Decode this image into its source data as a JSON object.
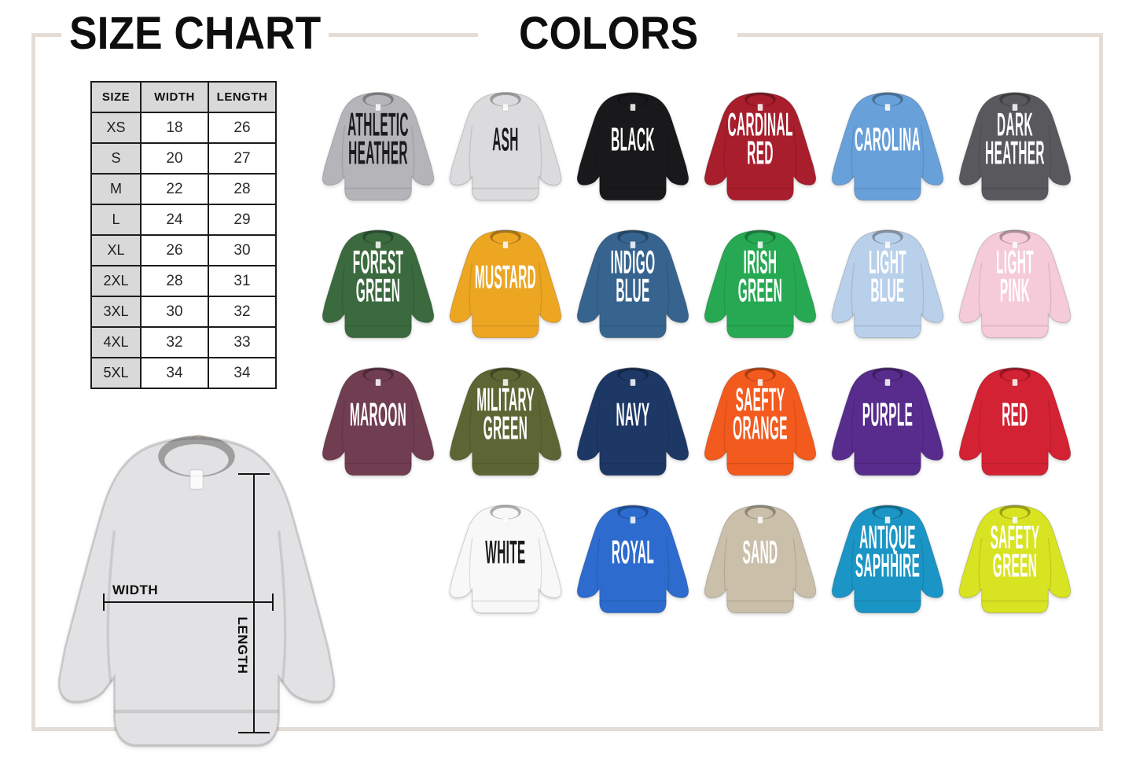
{
  "titles": {
    "size_chart": "SIZE CHART",
    "colors": "COLORS"
  },
  "frame": {
    "color": "#e4ddd7"
  },
  "size_table": {
    "headers": [
      "SIZE",
      "WIDTH",
      "LENGTH"
    ],
    "rows": [
      [
        "XS",
        "18",
        "26"
      ],
      [
        "S",
        "20",
        "27"
      ],
      [
        "M",
        "22",
        "28"
      ],
      [
        "L",
        "24",
        "29"
      ],
      [
        "XL",
        "26",
        "30"
      ],
      [
        "2XL",
        "28",
        "31"
      ],
      [
        "3XL",
        "30",
        "32"
      ],
      [
        "4XL",
        "32",
        "33"
      ],
      [
        "5XL",
        "34",
        "34"
      ]
    ]
  },
  "measurement_diagram": {
    "width_label": "WIDTH",
    "length_label": "LENGTH",
    "shirt_color": "#e2e2e4"
  },
  "color_options": [
    {
      "name": "ATHLETIC HEATHER",
      "color": "#b5b4b9",
      "text": "#1b1b1d"
    },
    {
      "name": "ASH",
      "color": "#dbdbdd",
      "text": "#1b1b1d"
    },
    {
      "name": "BLACK",
      "color": "#19191b",
      "text": "#ffffff"
    },
    {
      "name": "CARDINAL RED",
      "color": "#a81e2c",
      "text": "#ffffff"
    },
    {
      "name": "CAROLINA",
      "color": "#68a0da",
      "text": "#ffffff"
    },
    {
      "name": "DARK HEATHER",
      "color": "#59585c",
      "text": "#ffffff"
    },
    {
      "name": "FOREST GREEN",
      "color": "#3a6a3e",
      "text": "#ffffff"
    },
    {
      "name": "MUSTARD",
      "color": "#eca622",
      "text": "#ffffff"
    },
    {
      "name": "INDIGO BLUE",
      "color": "#36648e",
      "text": "#ffffff"
    },
    {
      "name": "IRISH GREEN",
      "color": "#27a953",
      "text": "#ffffff"
    },
    {
      "name": "LIGHT BLUE",
      "color": "#b9d0ea",
      "text": "#ffffff"
    },
    {
      "name": "LIGHT PINK",
      "color": "#f6cbd9",
      "text": "#ffffff"
    },
    {
      "name": "MAROON",
      "color": "#703d51",
      "text": "#ffffff"
    },
    {
      "name": "MILITARY GREEN",
      "color": "#5d6534",
      "text": "#ffffff"
    },
    {
      "name": "NAVY",
      "color": "#1e3866",
      "text": "#ffffff"
    },
    {
      "name": "SAEFTY ORANGE",
      "color": "#f35a1e",
      "text": "#ffffff"
    },
    {
      "name": "PURPLE",
      "color": "#572c8c",
      "text": "#ffffff"
    },
    {
      "name": "RED",
      "color": "#d32233",
      "text": "#ffffff"
    },
    {
      "name": "WHITE",
      "color": "#f8f8f8",
      "text": "#1b1b1d"
    },
    {
      "name": "ROYAL",
      "color": "#2d6bce",
      "text": "#ffffff"
    },
    {
      "name": "SAND",
      "color": "#cabfa9",
      "text": "#ffffff"
    },
    {
      "name": "ANTIQUE SAPHHIRE",
      "color": "#1b95c5",
      "text": "#ffffff"
    },
    {
      "name": "SAFETY GREEN",
      "color": "#d8e322",
      "text": "#ffffff"
    }
  ]
}
